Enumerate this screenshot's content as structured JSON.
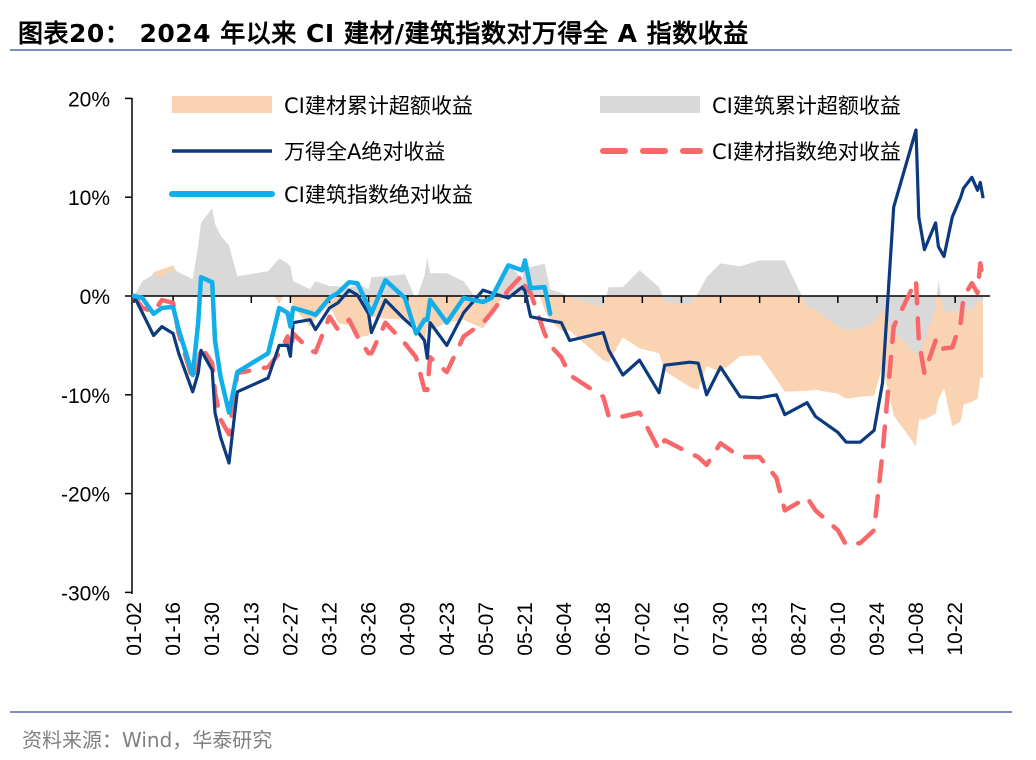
{
  "title": "图表20： 2024 年以来 CI 建材/建筑指数对万得全 A 指数收益",
  "source": "资料来源：Wind，华泰研究",
  "colors": {
    "materials_excess": "#FAD3B2",
    "construction_excess": "#D9D9D9",
    "wind_all_a": "#0B3A7E",
    "materials_index": "#F8686A",
    "construction_index": "#12AEEA"
  },
  "chart_data": {
    "type": "line",
    "title": "",
    "xlabel": "",
    "ylabel": "",
    "ylim": [
      -30,
      20
    ],
    "yticks": [
      "20%",
      "10%",
      "0%",
      "-10%",
      "-20%",
      "-30%"
    ],
    "ytick_values": [
      20,
      10,
      0,
      -10,
      -20,
      -30
    ],
    "xticks": [
      "01-02",
      "01-16",
      "01-30",
      "02-13",
      "02-27",
      "03-12",
      "03-26",
      "04-09",
      "04-23",
      "05-07",
      "05-21",
      "06-04",
      "06-18",
      "07-02",
      "07-16",
      "07-30",
      "08-13",
      "08-27",
      "09-10",
      "09-24",
      "10-08",
      "10-22"
    ],
    "x_unit": "date (2024, MM-DD)",
    "y_unit": "%",
    "grid": false,
    "legend_position": "top",
    "legend": [
      "CI建材累计超额收益",
      "CI建筑累计超额收益",
      "万得全A绝对收益",
      "CI建材指数绝对收益",
      "CI建筑指数绝对收益"
    ],
    "x": [
      "01-02",
      "01-05",
      "01-09",
      "01-12",
      "01-16",
      "01-18",
      "01-23",
      "01-25",
      "01-26",
      "01-30",
      "01-31",
      "02-02",
      "02-05",
      "02-08",
      "02-19",
      "02-23",
      "02-26",
      "02-27",
      "02-28",
      "03-05",
      "03-07",
      "03-12",
      "03-15",
      "03-19",
      "03-22",
      "03-26",
      "03-27",
      "04-01",
      "04-08",
      "04-12",
      "04-15",
      "04-16",
      "04-17",
      "04-23",
      "04-29",
      "05-06",
      "05-09",
      "05-15",
      "05-20",
      "05-21",
      "05-23",
      "05-28",
      "05-30",
      "06-03",
      "06-06",
      "06-18",
      "06-20",
      "06-25",
      "07-01",
      "07-08",
      "07-10",
      "07-19",
      "07-22",
      "07-25",
      "07-30",
      "08-06",
      "08-13",
      "08-19",
      "08-22",
      "08-30",
      "09-02",
      "09-10",
      "09-13",
      "09-18",
      "09-23",
      "09-26",
      "09-30",
      "10-08",
      "10-09",
      "10-11",
      "10-15",
      "10-16",
      "10-18",
      "10-21",
      "10-24",
      "10-25",
      "10-28",
      "10-30",
      "10-31",
      "11-01"
    ],
    "series": [
      {
        "name": "CI建材累计超额收益",
        "kind": "area",
        "values": [
          0,
          0.5,
          2.4,
          2.7,
          3.1,
          2.0,
          1.2,
          0.6,
          0.4,
          0.7,
          2.0,
          1.8,
          2.9,
          1.9,
          1.1,
          -0.8,
          0.9,
          0.3,
          -1.1,
          -3.1,
          -2.3,
          -0.9,
          -2.7,
          -3.0,
          -4.2,
          -4.0,
          -2.1,
          -2.3,
          -2.4,
          -2.8,
          -5.0,
          -3.2,
          -3.5,
          -2.7,
          -2.4,
          -3.3,
          -2.0,
          0.8,
          1.2,
          0.5,
          2.4,
          -1.4,
          -2.5,
          -3.5,
          -3.5,
          -6.5,
          -6.7,
          -4.2,
          -5.3,
          -5.8,
          -7.6,
          -9.2,
          -9.5,
          -7.1,
          -7.7,
          -6.1,
          -6.0,
          -8.4,
          -9.7,
          -9.6,
          -9.5,
          -9.9,
          -10.4,
          -10.2,
          -10.1,
          -7.1,
          -12.1,
          -15.2,
          -12.5,
          -12.5,
          -11.9,
          -10.5,
          -9.3,
          -13.2,
          -12.7,
          -11.0,
          -10.7,
          -10.4,
          -8.2,
          -8.3
        ]
      },
      {
        "name": "CI建筑累计超额收益",
        "kind": "area",
        "values": [
          0,
          1.5,
          2.2,
          1.9,
          2.7,
          2.4,
          1.7,
          5.1,
          7.4,
          8.9,
          7.3,
          6.1,
          5.1,
          2.0,
          2.5,
          3.8,
          3.3,
          3.0,
          1.5,
          0.7,
          1.5,
          1.0,
          1.0,
          0.8,
          1.2,
          0.7,
          1.9,
          2.0,
          2.2,
          -0.4,
          2.1,
          3.9,
          2.3,
          2.3,
          1.5,
          -1.2,
          -0.5,
          3.3,
          1.7,
          3.1,
          2.9,
          3.3,
          0.7,
          0.3,
          -0.1,
          -1.1,
          0.9,
          0.9,
          2.6,
          0.9,
          -0.6,
          -0.9,
          0.3,
          1.9,
          3.3,
          3.0,
          3.6,
          3.6,
          3.6,
          -1.1,
          -1.4,
          -3.1,
          -3.4,
          -3.3,
          -2.7,
          -1.4,
          -3.7,
          -5.8,
          -6.0,
          -4.5,
          -1.1,
          1.6,
          -1.7,
          -1.6,
          -1.4,
          -1.4,
          -1.4,
          -0.4,
          -0.5,
          -0.5
        ]
      },
      {
        "name": "万得全A绝对收益",
        "kind": "line",
        "values": [
          0,
          -1.7,
          -4.0,
          -3.1,
          -3.8,
          -5.8,
          -9.7,
          -7.8,
          -5.5,
          -7.5,
          -11.8,
          -14.3,
          -16.9,
          -9.7,
          -8.3,
          -5.0,
          -5.0,
          -6.1,
          -2.7,
          -2.4,
          -3.4,
          -1.2,
          -0.7,
          0.6,
          0.1,
          -1.8,
          -3.7,
          -0.4,
          -2.4,
          -3.4,
          -4.5,
          -6.3,
          -2.7,
          -5.0,
          -1.7,
          0.6,
          0.3,
          -0.2,
          0.9,
          0.5,
          -2.1,
          -2.4,
          -2.5,
          -2.7,
          -4.5,
          -3.7,
          -5.5,
          -8.0,
          -6.5,
          -9.8,
          -7.0,
          -6.7,
          -6.8,
          -10.0,
          -7.2,
          -10.2,
          -10.3,
          -10.0,
          -12.0,
          -10.8,
          -12.2,
          -13.8,
          -14.8,
          -14.8,
          -13.6,
          -8.8,
          9.0,
          16.8,
          8.0,
          4.7,
          7.4,
          5.0,
          4.0,
          8.0,
          10.0,
          10.9,
          12.0,
          10.7,
          11.5,
          9.9
        ]
      },
      {
        "name": "CI建材指数绝对收益",
        "kind": "dashed",
        "values": [
          0,
          -1.2,
          -1.6,
          -0.4,
          -0.7,
          -3.8,
          -8.5,
          -7.2,
          -5.1,
          -6.8,
          -9.8,
          -12.5,
          -14.0,
          -7.8,
          -7.2,
          -5.8,
          -4.1,
          -5.8,
          -3.8,
          -5.5,
          -5.7,
          -2.1,
          -3.4,
          -2.4,
          -4.1,
          -5.8,
          -5.8,
          -2.7,
          -4.8,
          -6.2,
          -9.5,
          -9.5,
          -6.2,
          -7.7,
          -4.1,
          -2.7,
          -1.7,
          0.6,
          2.1,
          1.0,
          0.3,
          -3.8,
          -5.0,
          -6.2,
          -8.0,
          -10.2,
          -12.2,
          -12.2,
          -11.8,
          -15.6,
          -14.6,
          -15.9,
          -16.3,
          -17.1,
          -14.9,
          -16.3,
          -16.3,
          -18.4,
          -21.7,
          -20.4,
          -21.7,
          -23.7,
          -25.2,
          -25.0,
          -23.7,
          -15.9,
          -3.1,
          1.6,
          -4.5,
          -7.8,
          -4.5,
          -5.5,
          -5.3,
          -5.2,
          -2.7,
          -0.1,
          1.3,
          0.3,
          3.3,
          1.6
        ]
      },
      {
        "name": "CI建筑指数绝对收益",
        "kind": "thick",
        "values": [
          0,
          -0.2,
          -1.8,
          -1.2,
          -1.1,
          -3.4,
          -8.0,
          -2.7,
          1.9,
          1.4,
          -4.5,
          -8.2,
          -11.8,
          -7.7,
          -5.8,
          -1.2,
          -1.7,
          -3.1,
          -1.2,
          -1.7,
          -1.9,
          -0.2,
          0.3,
          1.4,
          1.3,
          -1.1,
          -1.8,
          1.6,
          -0.2,
          -3.8,
          -2.4,
          -2.4,
          -0.4,
          -2.7,
          -0.2,
          -0.6,
          -0.2,
          3.1,
          2.6,
          3.6,
          0.8,
          0.9,
          -1.8,
          null,
          null,
          null,
          null,
          null,
          null,
          null,
          null,
          null,
          null,
          null,
          null,
          null,
          null,
          null,
          null,
          null,
          null,
          null,
          null,
          null,
          null,
          null,
          null,
          null,
          null,
          null,
          null,
          null,
          null,
          null,
          null,
          null,
          null,
          null,
          null,
          null
        ]
      }
    ]
  }
}
